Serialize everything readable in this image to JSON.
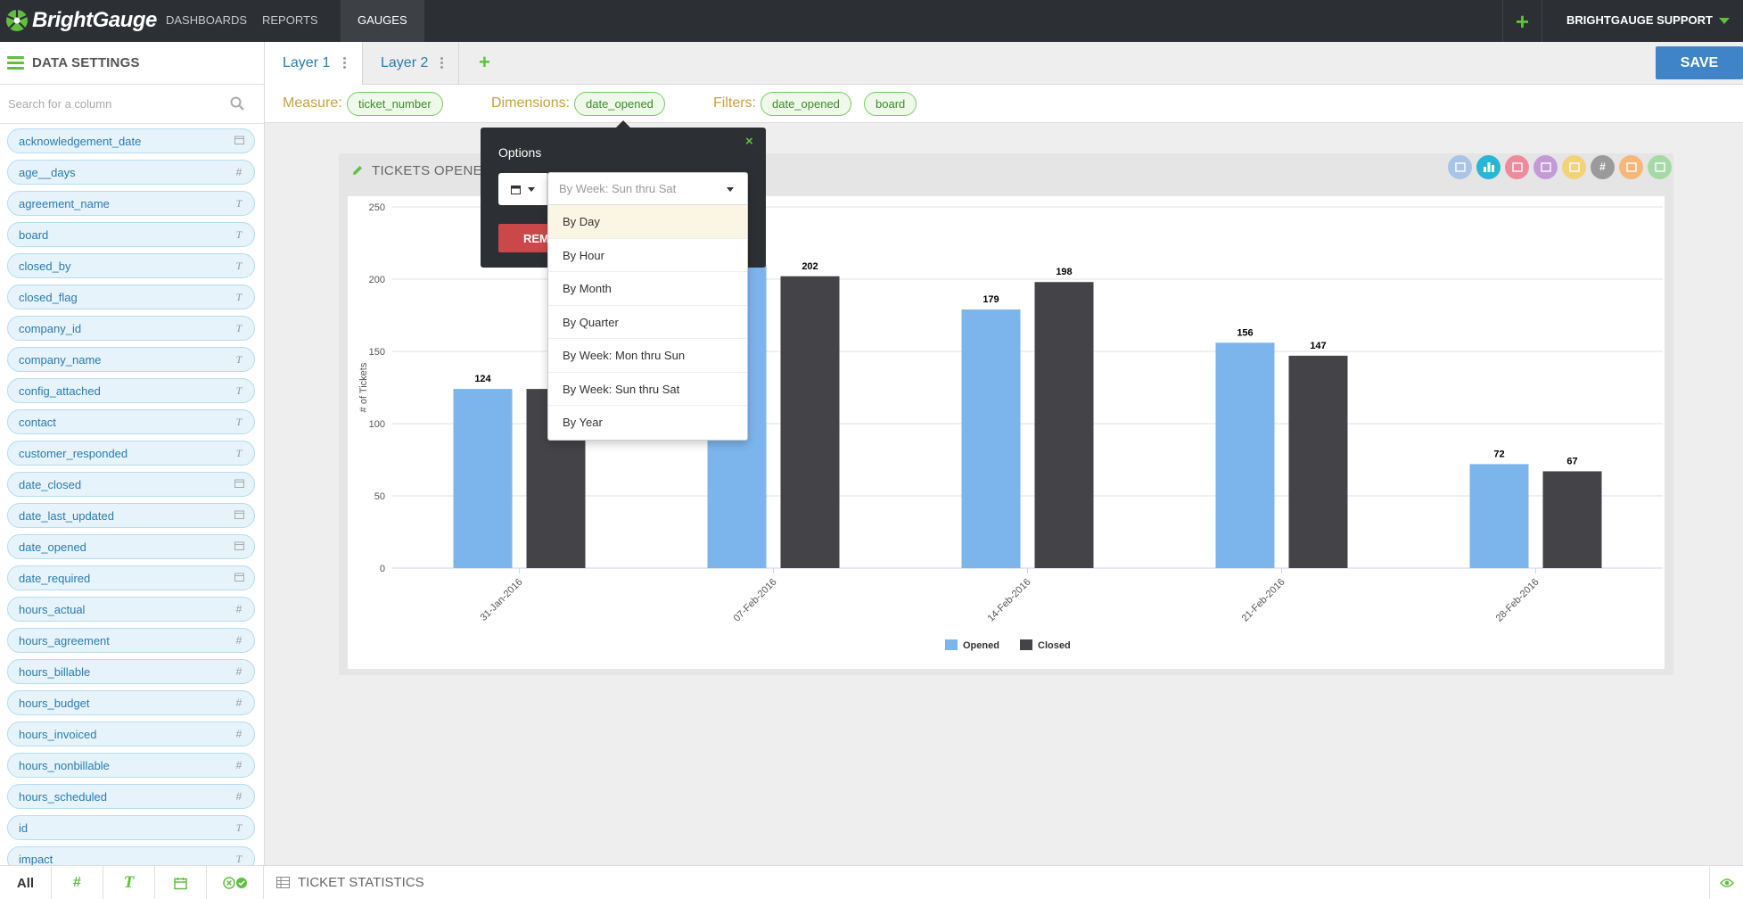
{
  "nav": {
    "brand": "BrightGauge",
    "items": [
      "DASHBOARDS",
      "REPORTS",
      "GAUGES"
    ],
    "account": "BRIGHTGAUGE SUPPORT",
    "plus": "+"
  },
  "sidebar": {
    "title": "DATA SETTINGS",
    "search_placeholder": "Search for a column",
    "columns": [
      {
        "name": "acknowledgement_date",
        "type": "date"
      },
      {
        "name": "age__days",
        "type": "number"
      },
      {
        "name": "agreement_name",
        "type": "text"
      },
      {
        "name": "board",
        "type": "text"
      },
      {
        "name": "closed_by",
        "type": "text"
      },
      {
        "name": "closed_flag",
        "type": "text"
      },
      {
        "name": "company_id",
        "type": "text"
      },
      {
        "name": "company_name",
        "type": "text"
      },
      {
        "name": "config_attached",
        "type": "text"
      },
      {
        "name": "contact",
        "type": "text"
      },
      {
        "name": "customer_responded",
        "type": "text"
      },
      {
        "name": "date_closed",
        "type": "date"
      },
      {
        "name": "date_last_updated",
        "type": "date"
      },
      {
        "name": "date_opened",
        "type": "date"
      },
      {
        "name": "date_required",
        "type": "date"
      },
      {
        "name": "hours_actual",
        "type": "number"
      },
      {
        "name": "hours_agreement",
        "type": "number"
      },
      {
        "name": "hours_billable",
        "type": "number"
      },
      {
        "name": "hours_budget",
        "type": "number"
      },
      {
        "name": "hours_invoiced",
        "type": "number"
      },
      {
        "name": "hours_nonbillable",
        "type": "number"
      },
      {
        "name": "hours_scheduled",
        "type": "number"
      },
      {
        "name": "id",
        "type": "text"
      },
      {
        "name": "impact",
        "type": "text"
      }
    ]
  },
  "bottom": {
    "filter_all": "All",
    "filter_number": "#",
    "filter_text": "T",
    "dataset_title": "TICKET STATISTICS"
  },
  "tabs": {
    "layer1": "Layer 1",
    "layer2": "Layer 2",
    "add": "+",
    "save": "SAVE"
  },
  "databar": {
    "measure_label": "Measure:",
    "measure": "ticket_number",
    "dimensions_label": "Dimensions:",
    "dimension": "date_opened",
    "filters_label": "Filters:",
    "filters": [
      "date_opened",
      "board"
    ]
  },
  "widget": {
    "title": "TICKETS OPENE",
    "chart_icon_colors": [
      "#a9c4e6",
      "#29b6d6",
      "#ef8a9b",
      "#c39ad8",
      "#f3d27a",
      "#9a9a9a",
      "#f5b77a",
      "#a6d9a6"
    ]
  },
  "popover": {
    "title": "Options",
    "close": "×",
    "remove_label": "REMOVE",
    "selected": "By Week: Sun thru Sat",
    "options": [
      "By Day",
      "By Hour",
      "By Month",
      "By Quarter",
      "By Week: Mon thru Sun",
      "By Week: Sun thru Sat",
      "By Year"
    ],
    "hovered_option": "By Day"
  },
  "chart_data": {
    "type": "bar",
    "ylabel": "# of Tickets",
    "xlabel": "",
    "ylim": [
      0,
      250
    ],
    "yticks": [
      0,
      50,
      100,
      150,
      200,
      250
    ],
    "grid": true,
    "legend_position": "bottom-center",
    "categories": [
      "31-Jan-2016",
      "07-Feb-2016",
      "14-Feb-2016",
      "21-Feb-2016",
      "28-Feb-2016"
    ],
    "series": [
      {
        "name": "Opened",
        "color": "#7cb5ec",
        "values": [
          124,
          210,
          179,
          156,
          72
        ],
        "labels": [
          "124",
          "",
          "179",
          "156",
          "72"
        ]
      },
      {
        "name": "Closed",
        "color": "#434348",
        "values": [
          124,
          202,
          198,
          147,
          67
        ],
        "labels": [
          "",
          "202",
          "198",
          "147",
          "67"
        ]
      }
    ]
  }
}
